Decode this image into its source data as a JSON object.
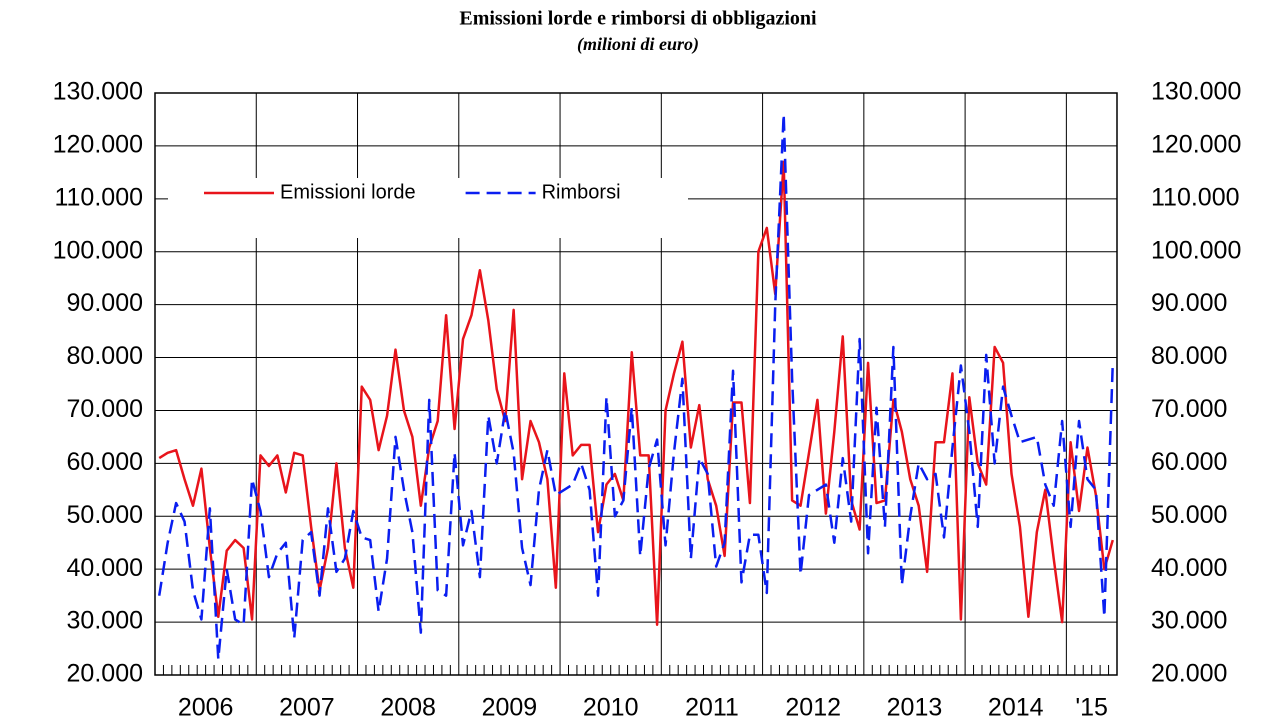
{
  "chart_data": {
    "type": "line",
    "title": "Emissioni lorde e rimborsi di obbligazioni",
    "subtitle": "(milioni di euro)",
    "categories": [
      null,
      null,
      null,
      null,
      null,
      null,
      "2006",
      null,
      null,
      null,
      null,
      null,
      null,
      null,
      null,
      null,
      null,
      null,
      "2007",
      null,
      null,
      null,
      null,
      null,
      null,
      null,
      null,
      null,
      null,
      null,
      "2008",
      null,
      null,
      null,
      null,
      null,
      null,
      null,
      null,
      null,
      null,
      null,
      "2009",
      null,
      null,
      null,
      null,
      null,
      null,
      null,
      null,
      null,
      null,
      null,
      "2010",
      null,
      null,
      null,
      null,
      null,
      null,
      null,
      null,
      null,
      null,
      null,
      "2011",
      null,
      null,
      null,
      null,
      null,
      null,
      null,
      null,
      null,
      null,
      null,
      "2012",
      null,
      null,
      null,
      null,
      null,
      null,
      null,
      null,
      null,
      null,
      null,
      "2013",
      null,
      null,
      null,
      null,
      null,
      null,
      null,
      null,
      null,
      null,
      null,
      "2014",
      null,
      null,
      null,
      null,
      null,
      null,
      null,
      null,
      "'15",
      null,
      null
    ],
    "series": [
      {
        "name": "Emissioni lorde",
        "color": "#e8141b",
        "dash": false,
        "values": [
          61000,
          62000,
          62500,
          57000,
          52000,
          59000,
          44000,
          31000,
          43500,
          45500,
          44000,
          30500,
          61500,
          59500,
          61500,
          54500,
          62000,
          61500,
          48000,
          36000,
          44000,
          60000,
          44000,
          36500,
          74500,
          72000,
          62500,
          69000,
          81500,
          70000,
          65000,
          52000,
          63000,
          68000,
          88000,
          66500,
          83500,
          88000,
          96500,
          87000,
          74000,
          68000,
          89000,
          57000,
          68000,
          64000,
          57000,
          36500,
          77000,
          61500,
          63500,
          63500,
          47000,
          56000,
          58000,
          53000,
          81000,
          61500,
          61500,
          29500,
          70000,
          77000,
          83000,
          63000,
          71000,
          57000,
          52000,
          42500,
          71500,
          71500,
          52500,
          100000,
          104500,
          92000,
          117000,
          53000,
          52000,
          62000,
          72000,
          50500,
          66000,
          84000,
          53000,
          47500,
          79000,
          52500,
          53000,
          72000,
          66000,
          57000,
          52000,
          39500,
          64000,
          64000,
          77000,
          30500,
          72500,
          60000,
          56000,
          82000,
          79000,
          58000,
          48000,
          31000,
          47000,
          55000,
          42000,
          30000,
          64000,
          51000,
          63000,
          54000,
          40000,
          45500
        ]
      },
      {
        "name": "Rimborsi",
        "color": "#0a1ef0",
        "dash": true,
        "values": [
          35000,
          45000,
          52500,
          49000,
          36000,
          30500,
          51500,
          23000,
          40000,
          30500,
          29500,
          57000,
          51000,
          38500,
          43000,
          45000,
          27000,
          45500,
          47000,
          35000,
          51500,
          39500,
          42000,
          51000,
          46000,
          45500,
          32000,
          42000,
          65000,
          55000,
          47000,
          28000,
          72000,
          36000,
          35000,
          62000,
          44500,
          51000,
          38500,
          69000,
          60000,
          70000,
          62000,
          44000,
          37000,
          55000,
          62500,
          54000,
          55000,
          56000,
          60000,
          55000,
          35000,
          72500,
          50000,
          53000,
          70500,
          42500,
          59000,
          64500,
          44500,
          62000,
          76000,
          42000,
          61000,
          58000,
          40500,
          45000,
          77500,
          37500,
          46500,
          46500,
          35500,
          90000,
          126000,
          76000,
          39000,
          54000,
          55000,
          56000,
          45000,
          61000,
          49000,
          83500,
          43000,
          70500,
          48000,
          82000,
          37000,
          50000,
          60000,
          57000,
          58000,
          46000,
          63000,
          78500,
          66000,
          48000,
          80500,
          60000,
          74500,
          69000,
          64000,
          64500,
          65000,
          56000,
          52000,
          68000,
          48000,
          68000,
          57000,
          55000,
          31000,
          79000
        ]
      }
    ],
    "ylim": [
      20000,
      130000
    ],
    "yticks": [
      {
        "value": 20000,
        "label": "20.000"
      },
      {
        "value": 30000,
        "label": "30.000"
      },
      {
        "value": 40000,
        "label": "40.000"
      },
      {
        "value": 50000,
        "label": "50.000"
      },
      {
        "value": 60000,
        "label": "60.000"
      },
      {
        "value": 70000,
        "label": "70.000"
      },
      {
        "value": 80000,
        "label": "80.000"
      },
      {
        "value": 90000,
        "label": "90.000"
      },
      {
        "value": 100000,
        "label": "100.000"
      },
      {
        "value": 110000,
        "label": "110.000"
      },
      {
        "value": 120000,
        "label": "120.000"
      },
      {
        "value": 130000,
        "label": "130.000"
      }
    ],
    "y2lim": [
      20000,
      130000
    ],
    "y2ticks": [
      {
        "value": 20000,
        "label": "20.000"
      },
      {
        "value": 30000,
        "label": "30.000"
      },
      {
        "value": 40000,
        "label": "40.000"
      },
      {
        "value": 50000,
        "label": "50.000"
      },
      {
        "value": 60000,
        "label": "60.000"
      },
      {
        "value": 70000,
        "label": "70.000"
      },
      {
        "value": 80000,
        "label": "80.000"
      },
      {
        "value": 90000,
        "label": "90.000"
      },
      {
        "value": 100000,
        "label": "100.000"
      },
      {
        "value": 110000,
        "label": "110.000"
      },
      {
        "value": 120000,
        "label": "120.000"
      },
      {
        "value": 130000,
        "label": "130.000"
      }
    ],
    "grid": true,
    "legend": "upper-left"
  }
}
